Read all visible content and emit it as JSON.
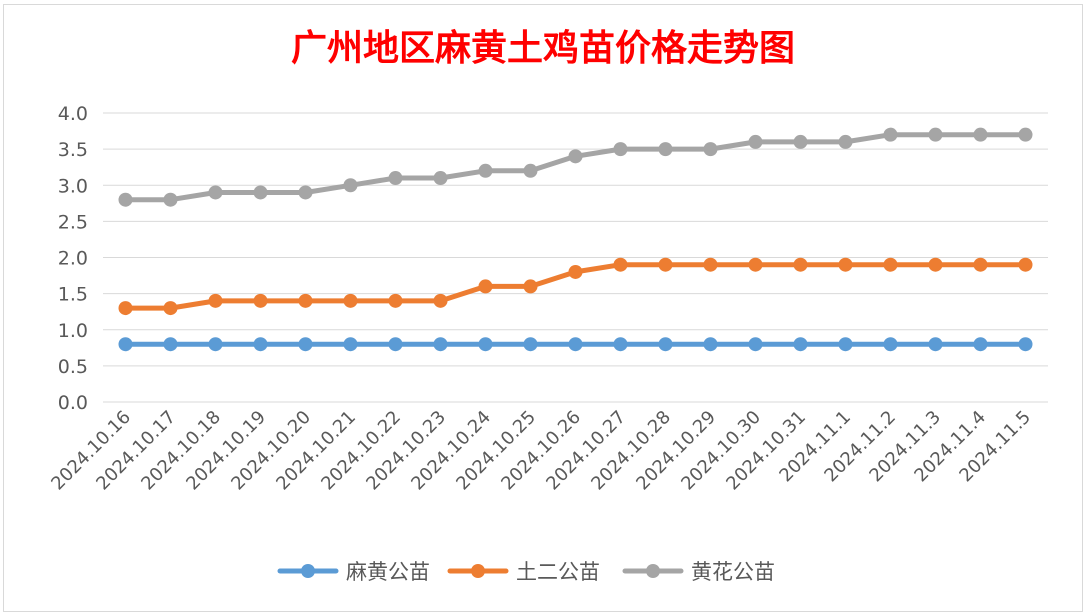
{
  "chart_data": {
    "type": "line",
    "title": "广州地区麻黄土鸡苗价格走势图",
    "title_color": "#ff0000",
    "xlabel": "",
    "ylabel": "",
    "ylim": [
      0,
      4.0
    ],
    "y_ticks": [
      "0.0",
      "0.5",
      "1.0",
      "1.5",
      "2.0",
      "2.5",
      "3.0",
      "3.5",
      "4.0"
    ],
    "grid": true,
    "legend_position": "bottom",
    "categories": [
      "2024.10.16",
      "2024.10.17",
      "2024.10.18",
      "2024.10.19",
      "2024.10.20",
      "2024.10.21",
      "2024.10.22",
      "2024.10.23",
      "2024.10.24",
      "2024.10.25",
      "2024.10.26",
      "2024.10.27",
      "2024.10.28",
      "2024.10.29",
      "2024.10.30",
      "2024.10.31",
      "2024.11.1",
      "2024.11.2",
      "2024.11.3",
      "2024.11.4",
      "2024.11.5"
    ],
    "series": [
      {
        "name": "麻黄公苗",
        "color": "#5b9bd5",
        "values": [
          0.8,
          0.8,
          0.8,
          0.8,
          0.8,
          0.8,
          0.8,
          0.8,
          0.8,
          0.8,
          0.8,
          0.8,
          0.8,
          0.8,
          0.8,
          0.8,
          0.8,
          0.8,
          0.8,
          0.8,
          0.8
        ]
      },
      {
        "name": "土二公苗",
        "color": "#ed7d31",
        "values": [
          1.3,
          1.3,
          1.4,
          1.4,
          1.4,
          1.4,
          1.4,
          1.4,
          1.6,
          1.6,
          1.8,
          1.9,
          1.9,
          1.9,
          1.9,
          1.9,
          1.9,
          1.9,
          1.9,
          1.9,
          1.9
        ]
      },
      {
        "name": "黄花公苗",
        "color": "#a5a5a5",
        "values": [
          2.8,
          2.8,
          2.9,
          2.9,
          2.9,
          3.0,
          3.1,
          3.1,
          3.2,
          3.2,
          3.4,
          3.5,
          3.5,
          3.5,
          3.6,
          3.6,
          3.6,
          3.7,
          3.7,
          3.7,
          3.7
        ]
      }
    ]
  }
}
